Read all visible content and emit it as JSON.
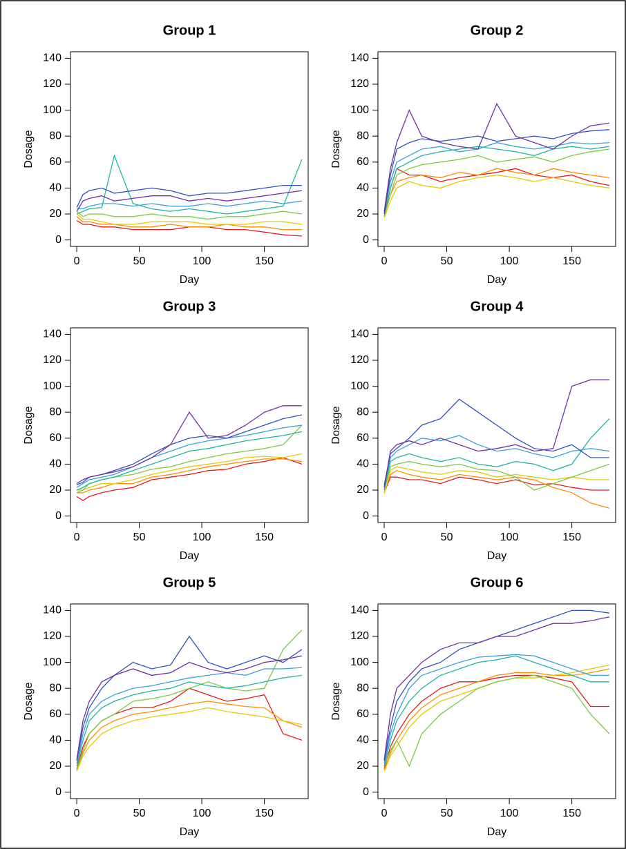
{
  "chart_data": [
    {
      "type": "line",
      "title": "Group 1",
      "xlabel": "Day",
      "ylabel": "Dosage",
      "x": [
        0,
        5,
        10,
        20,
        30,
        45,
        60,
        75,
        90,
        105,
        120,
        135,
        150,
        165,
        180
      ],
      "xlim": [
        -5,
        185
      ],
      "ylim": [
        -5,
        145
      ],
      "xticks": [
        0,
        50,
        100,
        150
      ],
      "yticks": [
        0,
        20,
        40,
        60,
        80,
        100,
        120,
        140
      ],
      "series": [
        {
          "color": "#e41a1c",
          "values": [
            15,
            12,
            12,
            10,
            10,
            8,
            8,
            8,
            10,
            10,
            8,
            8,
            6,
            4,
            3
          ]
        },
        {
          "color": "#ff8c00",
          "values": [
            18,
            14,
            14,
            12,
            12,
            10,
            10,
            12,
            10,
            10,
            12,
            10,
            10,
            8,
            8
          ]
        },
        {
          "color": "#e6c800",
          "values": [
            20,
            16,
            16,
            14,
            12,
            12,
            14,
            14,
            14,
            12,
            12,
            12,
            14,
            14,
            12
          ]
        },
        {
          "color": "#7ac943",
          "values": [
            22,
            18,
            20,
            20,
            18,
            18,
            20,
            18,
            18,
            16,
            18,
            18,
            20,
            22,
            20
          ]
        },
        {
          "color": "#1fb5a0",
          "values": [
            20,
            22,
            24,
            25,
            65,
            28,
            24,
            22,
            24,
            22,
            20,
            22,
            24,
            26,
            62
          ]
        },
        {
          "color": "#3aa0dc",
          "values": [
            24,
            24,
            26,
            28,
            28,
            26,
            28,
            26,
            26,
            28,
            26,
            28,
            30,
            28,
            30
          ]
        },
        {
          "color": "#3050c0",
          "values": [
            25,
            35,
            38,
            40,
            36,
            38,
            40,
            38,
            34,
            36,
            36,
            38,
            40,
            42,
            42
          ]
        },
        {
          "color": "#7030a0",
          "values": [
            22,
            30,
            32,
            34,
            30,
            32,
            34,
            34,
            30,
            32,
            30,
            32,
            34,
            36,
            38
          ]
        }
      ]
    },
    {
      "type": "line",
      "title": "Group 2",
      "xlabel": "Day",
      "ylabel": "Dosage",
      "x": [
        0,
        5,
        10,
        20,
        30,
        45,
        60,
        75,
        90,
        105,
        120,
        135,
        150,
        165,
        180
      ],
      "xlim": [
        -5,
        185
      ],
      "ylim": [
        -5,
        145
      ],
      "xticks": [
        0,
        50,
        100,
        150
      ],
      "yticks": [
        0,
        20,
        40,
        60,
        80,
        100,
        120,
        140
      ],
      "series": [
        {
          "color": "#e41a1c",
          "values": [
            18,
            40,
            55,
            50,
            50,
            45,
            48,
            50,
            52,
            55,
            50,
            48,
            50,
            45,
            42
          ]
        },
        {
          "color": "#ff8c00",
          "values": [
            18,
            35,
            45,
            48,
            50,
            48,
            52,
            50,
            55,
            52,
            50,
            55,
            52,
            50,
            48
          ]
        },
        {
          "color": "#e6c800",
          "values": [
            17,
            30,
            40,
            45,
            42,
            40,
            45,
            48,
            50,
            48,
            45,
            48,
            45,
            42,
            40
          ]
        },
        {
          "color": "#7ac943",
          "values": [
            18,
            35,
            50,
            55,
            58,
            60,
            62,
            65,
            60,
            62,
            64,
            60,
            65,
            68,
            70
          ]
        },
        {
          "color": "#1fb5a0",
          "values": [
            20,
            40,
            55,
            60,
            65,
            68,
            70,
            72,
            70,
            68,
            65,
            70,
            72,
            70,
            72
          ]
        },
        {
          "color": "#3aa0dc",
          "values": [
            22,
            45,
            60,
            65,
            70,
            72,
            68,
            70,
            75,
            72,
            70,
            72,
            75,
            74,
            75
          ]
        },
        {
          "color": "#3050c0",
          "values": [
            20,
            50,
            70,
            75,
            78,
            76,
            78,
            80,
            76,
            78,
            80,
            78,
            82,
            84,
            85
          ]
        },
        {
          "color": "#7030a0",
          "values": [
            22,
            55,
            75,
            100,
            80,
            75,
            72,
            70,
            105,
            80,
            75,
            70,
            80,
            88,
            90
          ]
        }
      ]
    },
    {
      "type": "line",
      "title": "Group 3",
      "xlabel": "Day",
      "ylabel": "Dosage",
      "x": [
        0,
        5,
        10,
        20,
        30,
        45,
        60,
        75,
        90,
        105,
        120,
        135,
        150,
        165,
        180
      ],
      "xlim": [
        -5,
        185
      ],
      "ylim": [
        -5,
        145
      ],
      "xticks": [
        0,
        50,
        100,
        150
      ],
      "yticks": [
        0,
        20,
        40,
        60,
        80,
        100,
        120,
        140
      ],
      "series": [
        {
          "color": "#e41a1c",
          "values": [
            15,
            12,
            15,
            18,
            20,
            22,
            28,
            30,
            32,
            35,
            36,
            40,
            42,
            45,
            40
          ]
        },
        {
          "color": "#ff8c00",
          "values": [
            18,
            18,
            20,
            22,
            25,
            25,
            30,
            32,
            35,
            38,
            40,
            42,
            44,
            44,
            42
          ]
        },
        {
          "color": "#e6c800",
          "values": [
            20,
            20,
            22,
            25,
            25,
            28,
            32,
            35,
            38,
            40,
            42,
            45,
            46,
            45,
            48
          ]
        },
        {
          "color": "#7ac943",
          "values": [
            18,
            20,
            25,
            28,
            30,
            32,
            36,
            38,
            42,
            45,
            48,
            50,
            52,
            55,
            70
          ]
        },
        {
          "color": "#1fb5a0",
          "values": [
            20,
            22,
            25,
            28,
            30,
            35,
            40,
            45,
            50,
            52,
            55,
            58,
            60,
            62,
            65
          ]
        },
        {
          "color": "#3aa0dc",
          "values": [
            22,
            25,
            28,
            30,
            32,
            38,
            45,
            50,
            55,
            58,
            60,
            62,
            65,
            68,
            70
          ]
        },
        {
          "color": "#3050c0",
          "values": [
            24,
            26,
            30,
            32,
            35,
            40,
            48,
            55,
            60,
            62,
            60,
            65,
            70,
            75,
            78
          ]
        },
        {
          "color": "#7030a0",
          "values": [
            25,
            28,
            30,
            32,
            34,
            38,
            45,
            55,
            80,
            60,
            62,
            70,
            80,
            85,
            85
          ]
        }
      ]
    },
    {
      "type": "line",
      "title": "Group 4",
      "xlabel": "Day",
      "ylabel": "Dosage",
      "x": [
        0,
        5,
        10,
        20,
        30,
        45,
        60,
        75,
        90,
        105,
        120,
        135,
        150,
        165,
        180
      ],
      "xlim": [
        -5,
        185
      ],
      "ylim": [
        -5,
        145
      ],
      "xticks": [
        0,
        50,
        100,
        150
      ],
      "yticks": [
        0,
        20,
        40,
        60,
        80,
        100,
        120,
        140
      ],
      "series": [
        {
          "color": "#e41a1c",
          "values": [
            18,
            30,
            30,
            28,
            28,
            25,
            30,
            28,
            25,
            28,
            24,
            25,
            22,
            20,
            20
          ]
        },
        {
          "color": "#ff8c00",
          "values": [
            18,
            32,
            35,
            32,
            30,
            28,
            32,
            30,
            28,
            30,
            28,
            22,
            18,
            10,
            6
          ]
        },
        {
          "color": "#e6c800",
          "values": [
            17,
            35,
            38,
            36,
            34,
            32,
            35,
            34,
            30,
            32,
            30,
            28,
            30,
            28,
            28
          ]
        },
        {
          "color": "#7ac943",
          "values": [
            20,
            38,
            40,
            42,
            40,
            38,
            40,
            36,
            35,
            30,
            20,
            25,
            30,
            35,
            40
          ]
        },
        {
          "color": "#1fb5a0",
          "values": [
            20,
            42,
            45,
            48,
            45,
            42,
            45,
            40,
            38,
            42,
            40,
            35,
            40,
            60,
            75
          ]
        },
        {
          "color": "#3aa0dc",
          "values": [
            22,
            45,
            50,
            55,
            60,
            58,
            62,
            55,
            50,
            52,
            48,
            45,
            50,
            52,
            50
          ]
        },
        {
          "color": "#3050c0",
          "values": [
            24,
            48,
            52,
            60,
            70,
            75,
            90,
            80,
            70,
            60,
            52,
            50,
            55,
            45,
            45
          ]
        },
        {
          "color": "#7030a0",
          "values": [
            22,
            50,
            55,
            58,
            55,
            60,
            55,
            50,
            52,
            55,
            50,
            52,
            100,
            105,
            105
          ]
        }
      ]
    },
    {
      "type": "line",
      "title": "Group 5",
      "xlabel": "Day",
      "ylabel": "Dosage",
      "x": [
        0,
        5,
        10,
        20,
        30,
        45,
        60,
        75,
        90,
        105,
        120,
        135,
        150,
        165,
        180
      ],
      "xlim": [
        -5,
        185
      ],
      "ylim": [
        -5,
        145
      ],
      "xticks": [
        0,
        50,
        100,
        150
      ],
      "yticks": [
        0,
        20,
        40,
        60,
        80,
        100,
        120,
        140
      ],
      "series": [
        {
          "color": "#e41a1c",
          "values": [
            18,
            35,
            45,
            55,
            60,
            65,
            65,
            70,
            80,
            75,
            70,
            72,
            75,
            45,
            40
          ]
        },
        {
          "color": "#ff8c00",
          "values": [
            17,
            30,
            40,
            50,
            55,
            60,
            62,
            65,
            68,
            70,
            68,
            66,
            65,
            55,
            50
          ]
        },
        {
          "color": "#e6c800",
          "values": [
            16,
            28,
            35,
            45,
            50,
            55,
            58,
            60,
            62,
            65,
            62,
            60,
            58,
            55,
            52
          ]
        },
        {
          "color": "#7ac943",
          "values": [
            18,
            32,
            45,
            55,
            60,
            70,
            72,
            75,
            80,
            85,
            80,
            78,
            80,
            110,
            125
          ]
        },
        {
          "color": "#1fb5a0",
          "values": [
            20,
            40,
            55,
            65,
            70,
            75,
            78,
            80,
            85,
            82,
            80,
            82,
            85,
            88,
            90
          ]
        },
        {
          "color": "#3aa0dc",
          "values": [
            22,
            45,
            60,
            70,
            75,
            80,
            82,
            85,
            88,
            90,
            92,
            90,
            95,
            95,
            96
          ]
        },
        {
          "color": "#3050c0",
          "values": [
            24,
            50,
            65,
            80,
            90,
            100,
            95,
            98,
            120,
            100,
            95,
            100,
            105,
            100,
            110
          ]
        },
        {
          "color": "#7030a0",
          "values": [
            25,
            55,
            70,
            85,
            90,
            95,
            90,
            92,
            100,
            95,
            92,
            95,
            100,
            102,
            105
          ]
        }
      ]
    },
    {
      "type": "line",
      "title": "Group 6",
      "xlabel": "Day",
      "ylabel": "Dosage",
      "x": [
        0,
        5,
        10,
        20,
        30,
        45,
        60,
        75,
        90,
        105,
        120,
        135,
        150,
        165,
        180
      ],
      "xlim": [
        -5,
        185
      ],
      "ylim": [
        -5,
        145
      ],
      "xticks": [
        0,
        50,
        100,
        150
      ],
      "yticks": [
        0,
        20,
        40,
        60,
        80,
        100,
        120,
        140
      ],
      "series": [
        {
          "color": "#e41a1c",
          "values": [
            18,
            35,
            45,
            60,
            70,
            80,
            85,
            85,
            88,
            90,
            90,
            88,
            85,
            66,
            66
          ]
        },
        {
          "color": "#ff8c00",
          "values": [
            17,
            30,
            40,
            55,
            65,
            75,
            80,
            85,
            90,
            92,
            92,
            90,
            90,
            92,
            95
          ]
        },
        {
          "color": "#e6c800",
          "values": [
            16,
            28,
            35,
            50,
            60,
            70,
            75,
            80,
            85,
            88,
            88,
            90,
            92,
            95,
            98
          ]
        },
        {
          "color": "#7ac943",
          "values": [
            20,
            32,
            40,
            20,
            45,
            60,
            70,
            80,
            85,
            88,
            90,
            85,
            80,
            60,
            45
          ]
        },
        {
          "color": "#1fb5a0",
          "values": [
            20,
            40,
            55,
            70,
            80,
            90,
            95,
            100,
            102,
            105,
            100,
            95,
            90,
            85,
            85
          ]
        },
        {
          "color": "#3aa0dc",
          "values": [
            22,
            45,
            60,
            80,
            90,
            95,
            100,
            104,
            105,
            106,
            105,
            100,
            95,
            90,
            90
          ]
        },
        {
          "color": "#3050c0",
          "values": [
            24,
            50,
            70,
            85,
            95,
            100,
            110,
            115,
            120,
            125,
            130,
            135,
            140,
            140,
            138
          ]
        },
        {
          "color": "#7030a0",
          "values": [
            25,
            60,
            80,
            90,
            100,
            110,
            115,
            115,
            120,
            120,
            125,
            130,
            130,
            132,
            135
          ]
        }
      ]
    }
  ]
}
